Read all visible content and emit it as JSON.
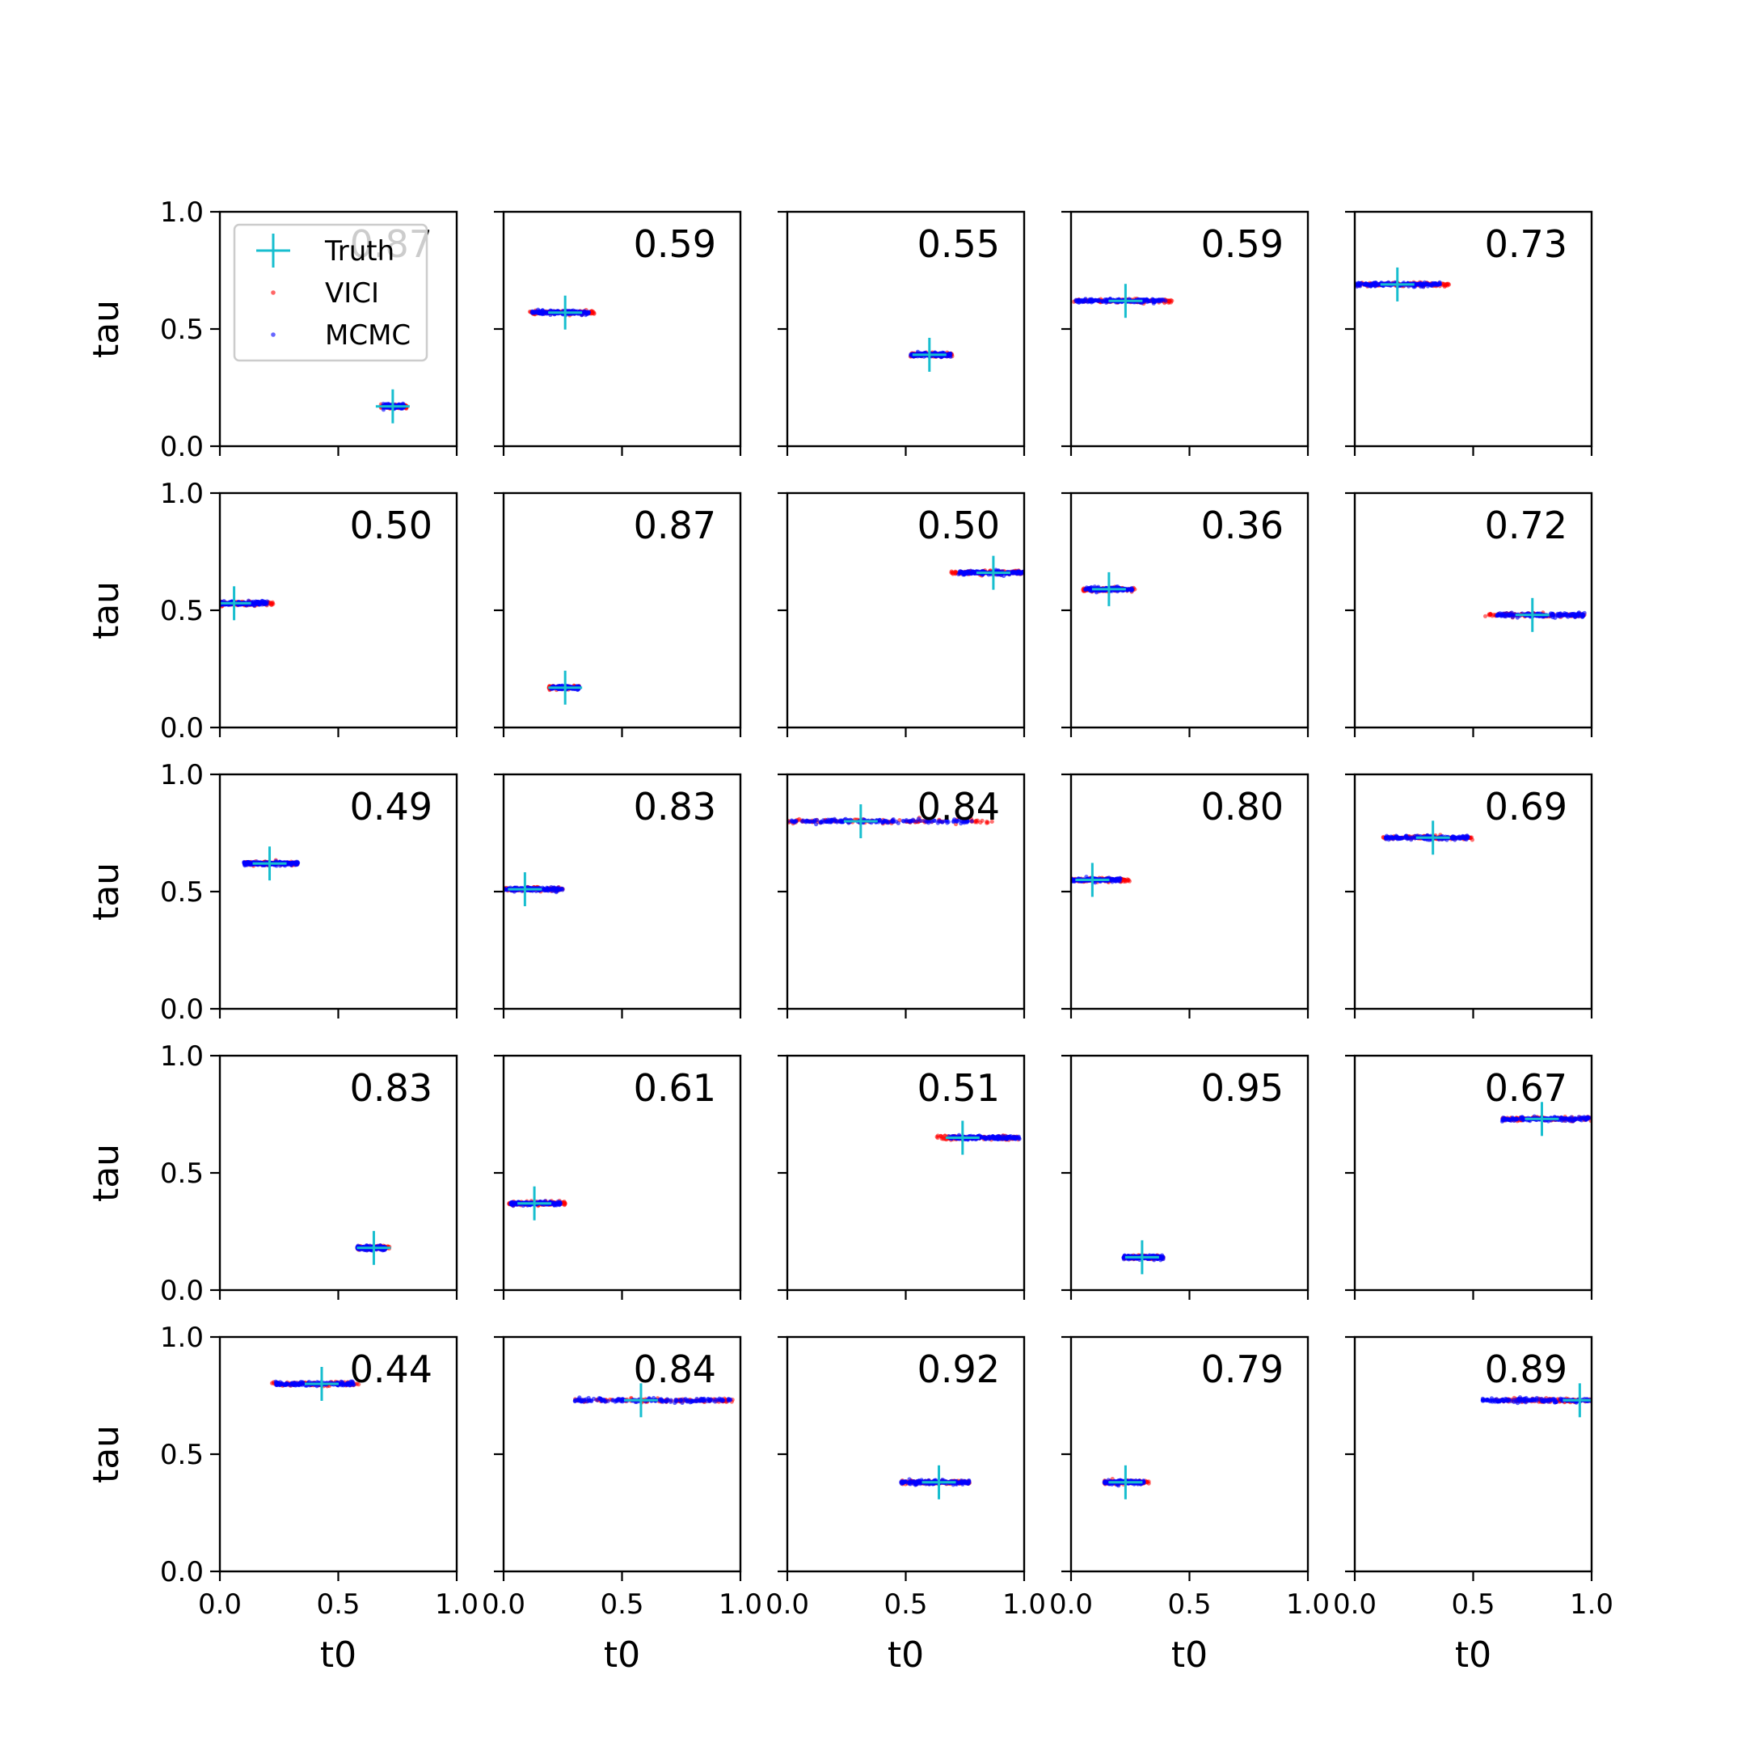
{
  "chart_data": {
    "type": "scatter",
    "layout": "5x5 grid of panels",
    "xlabel": "t0",
    "ylabel": "tau",
    "xlim": [
      0,
      1
    ],
    "ylim": [
      0,
      1
    ],
    "xticks": [
      "0.0",
      "0.5",
      "1.0"
    ],
    "yticks": [
      "0.0",
      "0.5",
      "1.0"
    ],
    "grid": false,
    "legend_position": "top-left of first panel",
    "legend": [
      {
        "name": "Truth",
        "marker": "plus",
        "color": "#17becf"
      },
      {
        "name": "VICI",
        "marker": "dot",
        "color": "#ff0000"
      },
      {
        "name": "MCMC",
        "marker": "dot",
        "color": "#0000ff"
      }
    ],
    "panels": [
      {
        "label": "0.87",
        "truth": [
          0.73,
          0.17
        ],
        "spread": 0.05,
        "vici_range": [
          0.68,
          0.79
        ],
        "mcmc_range": [
          0.69,
          0.78
        ]
      },
      {
        "label": "0.59",
        "truth": [
          0.26,
          0.57
        ],
        "spread": 0.12,
        "vici_range": [
          0.11,
          0.39
        ],
        "mcmc_range": [
          0.12,
          0.36
        ]
      },
      {
        "label": "0.55",
        "truth": [
          0.6,
          0.39
        ],
        "spread": 0.07,
        "vici_range": [
          0.52,
          0.7
        ],
        "mcmc_range": [
          0.52,
          0.69
        ]
      },
      {
        "label": "0.59",
        "truth": [
          0.23,
          0.62
        ],
        "spread": 0.17,
        "vici_range": [
          0.01,
          0.43
        ],
        "mcmc_range": [
          0.02,
          0.4
        ]
      },
      {
        "label": "0.73",
        "truth": [
          0.18,
          0.69
        ],
        "spread": 0.18,
        "vici_range": [
          0.0,
          0.4
        ],
        "mcmc_range": [
          0.0,
          0.36
        ]
      },
      {
        "label": "0.50",
        "truth": [
          0.06,
          0.53
        ],
        "spread": 0.08,
        "vici_range": [
          0.0,
          0.23
        ],
        "mcmc_range": [
          0.0,
          0.2
        ]
      },
      {
        "label": "0.87",
        "truth": [
          0.26,
          0.17
        ],
        "spread": 0.06,
        "vici_range": [
          0.19,
          0.32
        ],
        "mcmc_range": [
          0.2,
          0.32
        ]
      },
      {
        "label": "0.50",
        "truth": [
          0.87,
          0.66
        ],
        "spread": 0.1,
        "vici_range": [
          0.69,
          1.0
        ],
        "mcmc_range": [
          0.72,
          1.0
        ]
      },
      {
        "label": "0.36",
        "truth": [
          0.16,
          0.59
        ],
        "spread": 0.06,
        "vici_range": [
          0.05,
          0.27
        ],
        "mcmc_range": [
          0.06,
          0.26
        ]
      },
      {
        "label": "0.72",
        "truth": [
          0.75,
          0.48
        ],
        "spread": 0.12,
        "vici_range": [
          0.55,
          0.97
        ],
        "mcmc_range": [
          0.6,
          0.97
        ]
      },
      {
        "label": "0.49",
        "truth": [
          0.21,
          0.62
        ],
        "spread": 0.08,
        "vici_range": [
          0.1,
          0.33
        ],
        "mcmc_range": [
          0.1,
          0.33
        ]
      },
      {
        "label": "0.83",
        "truth": [
          0.09,
          0.51
        ],
        "spread": 0.06,
        "vici_range": [
          0.0,
          0.25
        ],
        "mcmc_range": [
          0.0,
          0.25
        ]
      },
      {
        "label": "0.84",
        "truth": [
          0.31,
          0.8
        ],
        "spread": 0.2,
        "vici_range": [
          0.0,
          0.87
        ],
        "mcmc_range": [
          0.0,
          0.78
        ]
      },
      {
        "label": "0.80",
        "truth": [
          0.09,
          0.55
        ],
        "spread": 0.07,
        "vici_range": [
          0.0,
          0.25
        ],
        "mcmc_range": [
          0.0,
          0.21
        ]
      },
      {
        "label": "0.69",
        "truth": [
          0.33,
          0.73
        ],
        "spread": 0.13,
        "vici_range": [
          0.12,
          0.5
        ],
        "mcmc_range": [
          0.13,
          0.48
        ]
      },
      {
        "label": "0.83",
        "truth": [
          0.65,
          0.18
        ],
        "spread": 0.05,
        "vici_range": [
          0.58,
          0.72
        ],
        "mcmc_range": [
          0.58,
          0.7
        ]
      },
      {
        "label": "0.61",
        "truth": [
          0.13,
          0.37
        ],
        "spread": 0.07,
        "vici_range": [
          0.02,
          0.26
        ],
        "mcmc_range": [
          0.03,
          0.24
        ]
      },
      {
        "label": "0.51",
        "truth": [
          0.74,
          0.65
        ],
        "spread": 0.12,
        "vici_range": [
          0.63,
          0.98
        ],
        "mcmc_range": [
          0.68,
          0.98
        ]
      },
      {
        "label": "0.95",
        "truth": [
          0.3,
          0.14
        ],
        "spread": 0.06,
        "vici_range": [
          0.22,
          0.39
        ],
        "mcmc_range": [
          0.22,
          0.39
        ]
      },
      {
        "label": "0.67",
        "truth": [
          0.79,
          0.73
        ],
        "spread": 0.12,
        "vici_range": [
          0.62,
          1.0
        ],
        "mcmc_range": [
          0.62,
          1.0
        ]
      },
      {
        "label": "0.44",
        "truth": [
          0.43,
          0.8
        ],
        "spread": 0.11,
        "vici_range": [
          0.22,
          0.59
        ],
        "mcmc_range": [
          0.23,
          0.57
        ]
      },
      {
        "label": "0.84",
        "truth": [
          0.58,
          0.73
        ],
        "spread": 0.17,
        "vici_range": [
          0.3,
          0.97
        ],
        "mcmc_range": [
          0.3,
          0.96
        ]
      },
      {
        "label": "0.92",
        "truth": [
          0.64,
          0.38
        ],
        "spread": 0.1,
        "vici_range": [
          0.48,
          0.77
        ],
        "mcmc_range": [
          0.48,
          0.77
        ]
      },
      {
        "label": "0.79",
        "truth": [
          0.23,
          0.38
        ],
        "spread": 0.06,
        "vici_range": [
          0.14,
          0.33
        ],
        "mcmc_range": [
          0.14,
          0.31
        ]
      },
      {
        "label": "0.89",
        "truth": [
          0.95,
          0.73
        ],
        "spread": 0.11,
        "vici_range": [
          0.59,
          1.0
        ],
        "mcmc_range": [
          0.54,
          1.0
        ]
      }
    ]
  }
}
